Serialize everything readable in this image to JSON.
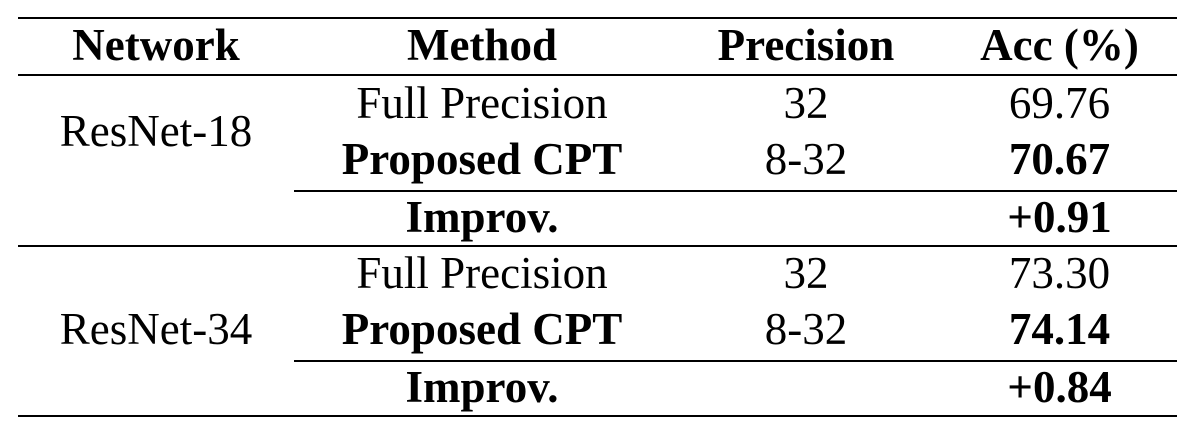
{
  "header": {
    "network": "Network",
    "method": "Method",
    "precision": "Precision",
    "acc": "Acc (%)"
  },
  "groups": [
    {
      "network": "ResNet-18",
      "rows": [
        {
          "method": "Full Precision",
          "precision": "32",
          "acc": "69.76",
          "bold": false
        },
        {
          "method": "Proposed CPT",
          "precision": "8-32",
          "acc": "70.67",
          "bold": true
        }
      ],
      "improv": {
        "label": "Improv.",
        "value": "+0.91"
      }
    },
    {
      "network": "ResNet-34",
      "rows": [
        {
          "method": "Full Precision",
          "precision": "32",
          "acc": "73.30",
          "bold": false
        },
        {
          "method": "Proposed CPT",
          "precision": "8-32",
          "acc": "74.14",
          "bold": true
        }
      ],
      "improv": {
        "label": "Improv.",
        "value": "+0.84"
      }
    }
  ]
}
